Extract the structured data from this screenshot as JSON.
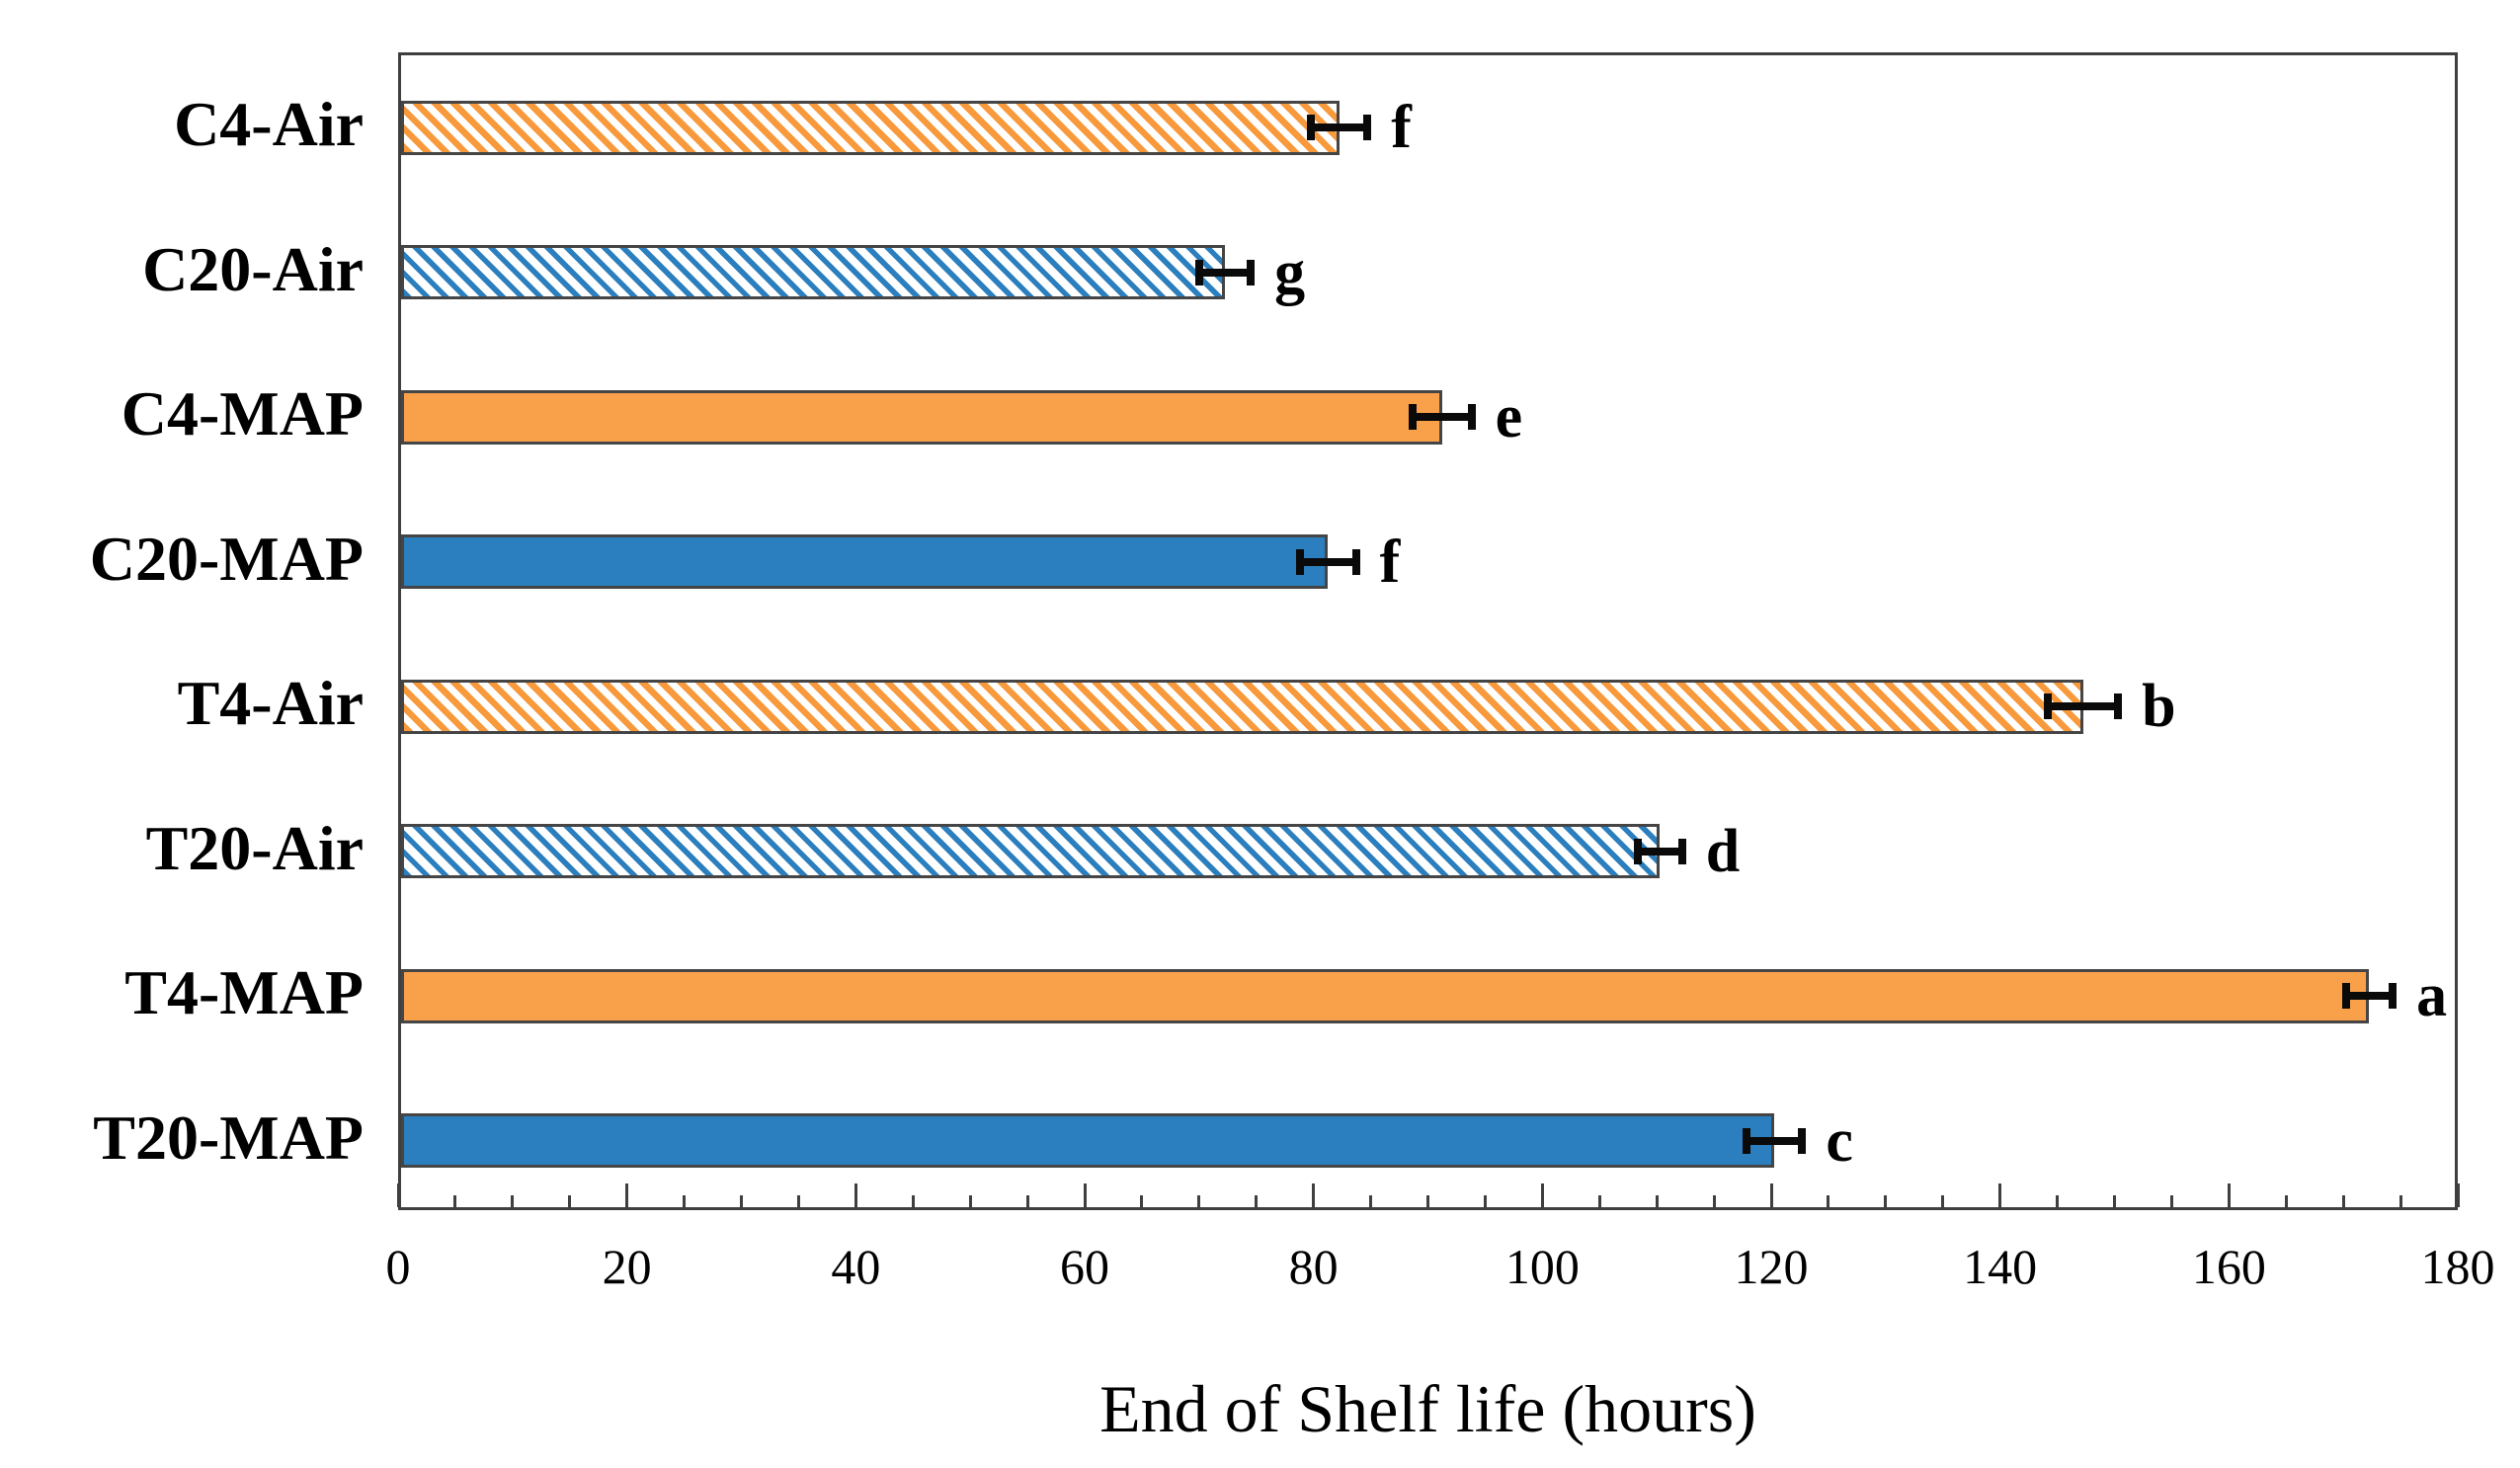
{
  "chart_data": {
    "type": "bar",
    "orientation": "horizontal",
    "title": "",
    "xlabel": "End of Shelf life (hours)",
    "ylabel": "",
    "xlim": [
      0,
      180
    ],
    "x_major_tick_step": 20,
    "x_minor_tick_step": 5,
    "x_tick_labels": [
      "0",
      "20",
      "40",
      "60",
      "80",
      "100",
      "120",
      "140",
      "160",
      "180"
    ],
    "grid": false,
    "legend": false,
    "categories": [
      "C4-Air",
      "C20-Air",
      "C4-MAP",
      "C20-MAP",
      "T4-Air",
      "T20-Air",
      "T4-MAP",
      "T20-MAP"
    ],
    "values": [
      82,
      72,
      91,
      81,
      147,
      110,
      172,
      120
    ],
    "error_bars": [
      2.8,
      2.6,
      2.9,
      2.8,
      3.4,
      2.3,
      2.4,
      2.8
    ],
    "significance_letters": [
      "f",
      "g",
      "e",
      "f",
      "b",
      "d",
      "a",
      "c"
    ],
    "bar_styles": [
      "hatch-orange",
      "hatch-blue",
      "solid-orange",
      "solid-blue",
      "hatch-orange",
      "hatch-blue",
      "solid-orange",
      "solid-blue"
    ],
    "colors": {
      "orange": "#F9A04B",
      "blue": "#2B7FBE",
      "bar_outline": "#454545",
      "axis": "#3F3F3F",
      "text": "#000000"
    }
  }
}
